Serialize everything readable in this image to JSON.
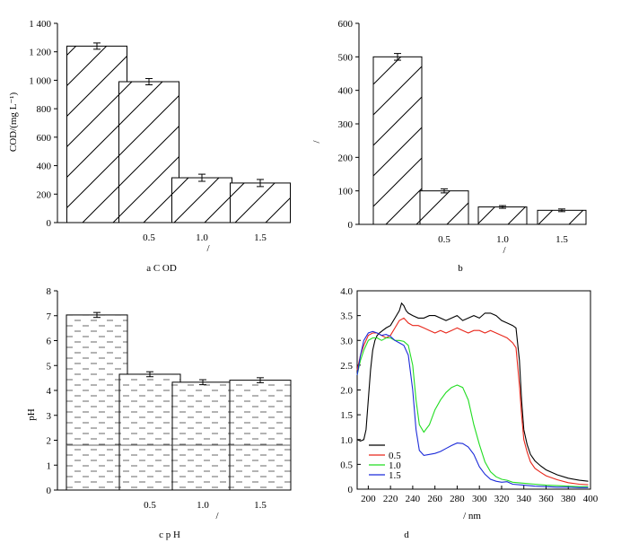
{
  "chart_data": [
    {
      "id": "a",
      "type": "bar",
      "caption": "a C    OD",
      "ylabel": "COD/(mg   L⁻¹)",
      "xlabel": "/",
      "categories": [
        "",
        "0.5",
        "1.0",
        "1.5"
      ],
      "values": [
        1240,
        990,
        315,
        278
      ],
      "errors": [
        22,
        22,
        25,
        25
      ],
      "ylim": [
        0,
        1400
      ],
      "yticks": [
        0,
        200,
        400,
        600,
        800,
        1000,
        1200,
        1400
      ],
      "ytick_labels": [
        "0",
        "200",
        "400",
        "600",
        "800",
        "1 000",
        "1 200",
        "1 400"
      ],
      "pattern": "diagonal"
    },
    {
      "id": "b",
      "type": "bar",
      "caption": "b",
      "ylabel": "/",
      "xlabel": "/",
      "categories": [
        "",
        "0.5",
        "1.0",
        "1.5"
      ],
      "values": [
        500,
        100,
        52,
        42
      ],
      "errors": [
        10,
        6,
        4,
        4
      ],
      "ylim": [
        0,
        600
      ],
      "yticks": [
        0,
        100,
        200,
        300,
        400,
        500,
        600
      ],
      "ytick_labels": [
        "0",
        "100",
        "200",
        "300",
        "400",
        "500",
        "600"
      ],
      "pattern": "diagonal"
    },
    {
      "id": "c",
      "type": "bar",
      "caption": "c p    H",
      "ylabel": "pH",
      "xlabel": "/",
      "categories": [
        "",
        "0.5",
        "1.0",
        "1.5"
      ],
      "values": [
        7.03,
        4.65,
        4.33,
        4.41
      ],
      "errors": [
        0.1,
        0.1,
        0.1,
        0.1
      ],
      "ylim": [
        0,
        8
      ],
      "yticks": [
        0,
        1,
        2,
        3,
        4,
        5,
        6,
        7,
        8
      ],
      "ytick_labels": [
        "0",
        "1",
        "2",
        "3",
        "4",
        "5",
        "6",
        "7",
        "8"
      ],
      "pattern": "dashed"
    },
    {
      "id": "d",
      "type": "line",
      "caption": "d",
      "xlabel": "/    nm",
      "ylabel": "",
      "xlim": [
        190,
        400
      ],
      "ylim": [
        0,
        4.0
      ],
      "xticks": [
        200,
        220,
        240,
        260,
        280,
        300,
        320,
        340,
        360,
        380,
        400
      ],
      "yticks": [
        0,
        0.5,
        1.0,
        1.5,
        2.0,
        2.5,
        3.0,
        3.5,
        4.0
      ],
      "ytick_labels": [
        "0",
        "0.5",
        "1.0",
        "1.5",
        "2.0",
        "2.5",
        "3.0",
        "3.5",
        "4.0"
      ],
      "series": [
        {
          "name": "",
          "color": "#000000",
          "x": [
            190,
            193,
            196,
            198,
            200,
            202,
            204,
            206,
            208,
            210,
            213,
            216,
            220,
            224,
            228,
            230,
            232,
            234,
            236,
            240,
            245,
            250,
            255,
            260,
            265,
            270,
            275,
            280,
            285,
            290,
            295,
            300,
            305,
            310,
            315,
            320,
            325,
            330,
            333,
            336,
            338,
            340,
            343,
            346,
            350,
            355,
            360,
            370,
            380,
            390,
            398
          ],
          "y": [
            1.0,
            0.97,
            1.0,
            1.2,
            1.8,
            2.4,
            2.8,
            3.0,
            3.1,
            3.15,
            3.2,
            3.25,
            3.3,
            3.45,
            3.6,
            3.75,
            3.7,
            3.6,
            3.55,
            3.5,
            3.45,
            3.45,
            3.5,
            3.5,
            3.45,
            3.4,
            3.45,
            3.5,
            3.4,
            3.45,
            3.5,
            3.45,
            3.55,
            3.55,
            3.5,
            3.4,
            3.35,
            3.3,
            3.25,
            2.6,
            1.8,
            1.2,
            0.9,
            0.7,
            0.57,
            0.47,
            0.39,
            0.29,
            0.22,
            0.18,
            0.16
          ]
        },
        {
          "name": "0.5",
          "color": "#e8261a",
          "x": [
            190,
            193,
            196,
            200,
            204,
            208,
            212,
            216,
            220,
            224,
            228,
            232,
            236,
            240,
            245,
            250,
            255,
            260,
            265,
            270,
            275,
            280,
            285,
            290,
            295,
            300,
            305,
            310,
            315,
            320,
            325,
            330,
            333,
            336,
            338,
            340,
            343,
            346,
            350,
            355,
            360,
            370,
            380,
            390,
            398
          ],
          "y": [
            2.4,
            2.7,
            2.9,
            3.1,
            3.15,
            3.15,
            3.1,
            3.05,
            3.1,
            3.25,
            3.4,
            3.45,
            3.35,
            3.3,
            3.3,
            3.25,
            3.2,
            3.15,
            3.2,
            3.15,
            3.2,
            3.25,
            3.2,
            3.15,
            3.2,
            3.2,
            3.15,
            3.2,
            3.15,
            3.1,
            3.05,
            2.95,
            2.85,
            2.1,
            1.5,
            1.0,
            0.75,
            0.55,
            0.42,
            0.34,
            0.27,
            0.19,
            0.13,
            0.1,
            0.09
          ]
        },
        {
          "name": "1.0",
          "color": "#22dd22",
          "x": [
            190,
            193,
            196,
            200,
            204,
            208,
            212,
            216,
            220,
            224,
            228,
            232,
            236,
            240,
            243,
            246,
            250,
            255,
            260,
            265,
            270,
            275,
            280,
            285,
            290,
            295,
            300,
            305,
            310,
            315,
            320,
            325,
            330,
            340,
            350,
            360,
            370,
            380,
            390,
            398
          ],
          "y": [
            2.3,
            2.6,
            2.8,
            3.0,
            3.05,
            3.05,
            3.0,
            3.05,
            3.05,
            3.0,
            3.0,
            2.98,
            2.9,
            2.5,
            1.8,
            1.3,
            1.15,
            1.3,
            1.6,
            1.8,
            1.95,
            2.05,
            2.1,
            2.05,
            1.8,
            1.3,
            0.9,
            0.55,
            0.35,
            0.25,
            0.2,
            0.18,
            0.14,
            0.12,
            0.1,
            0.08,
            0.07,
            0.06,
            0.05,
            0.05
          ]
        },
        {
          "name": "1.5",
          "color": "#1c2bd9",
          "x": [
            190,
            193,
            196,
            200,
            204,
            208,
            212,
            216,
            220,
            224,
            228,
            232,
            236,
            240,
            243,
            246,
            250,
            255,
            260,
            265,
            270,
            275,
            280,
            285,
            290,
            295,
            300,
            305,
            310,
            315,
            320,
            325,
            330,
            340,
            350,
            360,
            370,
            380,
            390,
            398
          ],
          "y": [
            2.3,
            2.7,
            3.0,
            3.15,
            3.18,
            3.15,
            3.1,
            3.12,
            3.08,
            3.0,
            2.95,
            2.9,
            2.7,
            2.0,
            1.2,
            0.78,
            0.68,
            0.7,
            0.72,
            0.76,
            0.82,
            0.88,
            0.93,
            0.92,
            0.85,
            0.7,
            0.45,
            0.3,
            0.2,
            0.16,
            0.14,
            0.15,
            0.1,
            0.08,
            0.06,
            0.05,
            0.04,
            0.04,
            0.03,
            0.03
          ]
        }
      ]
    }
  ]
}
